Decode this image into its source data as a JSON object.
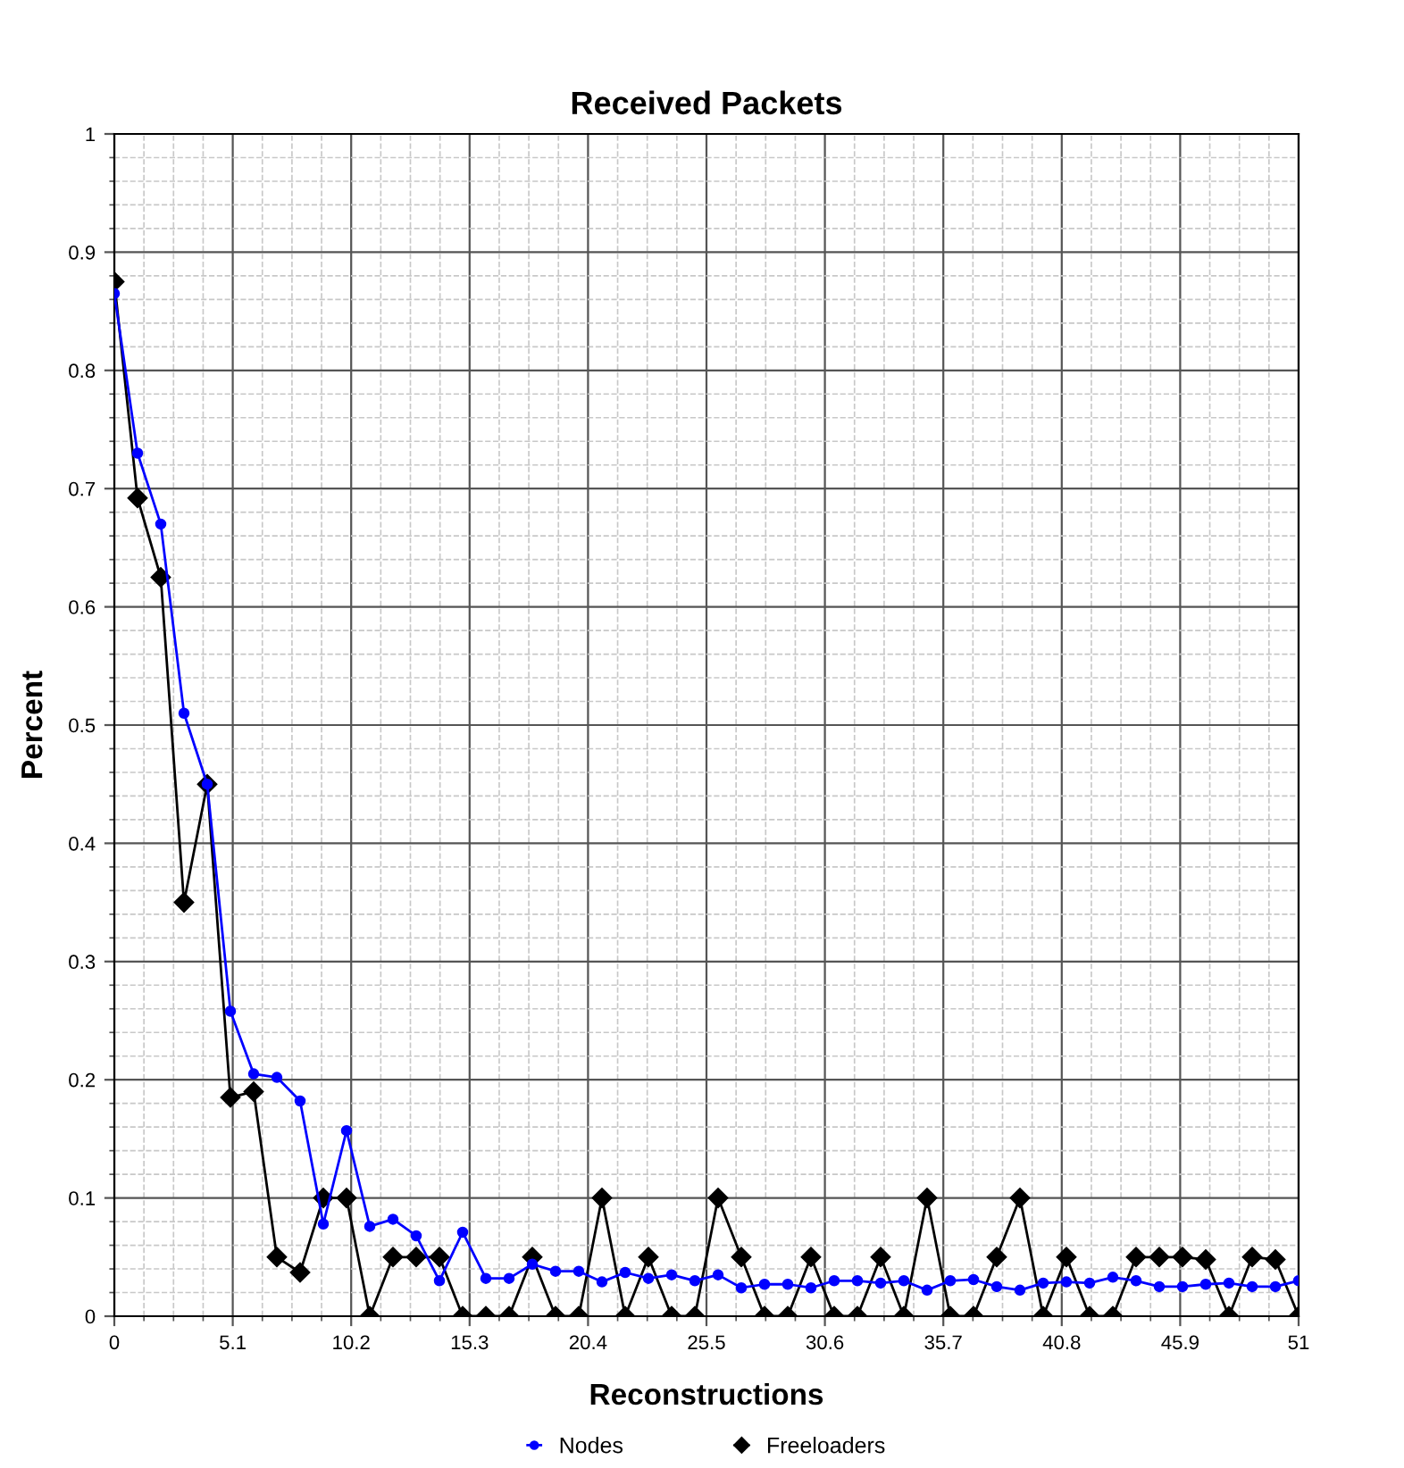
{
  "chart_data": {
    "type": "line",
    "title": "Received Packets",
    "xlabel": "Reconstructions",
    "ylabel": "Percent",
    "x": [
      0,
      1,
      2,
      3,
      4,
      5,
      6,
      7,
      8,
      9,
      10,
      11,
      12,
      13,
      14,
      15,
      16,
      17,
      18,
      19,
      20,
      21,
      22,
      23,
      24,
      25,
      26,
      27,
      28,
      29,
      30,
      31,
      32,
      33,
      34,
      35,
      36,
      37,
      38,
      39,
      40,
      41,
      42,
      43,
      44,
      45,
      46,
      47,
      48,
      49,
      50,
      51
    ],
    "series": [
      {
        "name": "Nodes",
        "color": "#0000ff",
        "marker": "circle",
        "values": [
          0.865,
          0.73,
          0.67,
          0.51,
          0.45,
          0.258,
          0.205,
          0.202,
          0.182,
          0.078,
          0.157,
          0.076,
          0.082,
          0.068,
          0.03,
          0.071,
          0.032,
          0.032,
          0.044,
          0.038,
          0.038,
          0.029,
          0.037,
          0.032,
          0.035,
          0.03,
          0.035,
          0.024,
          0.027,
          0.027,
          0.024,
          0.03,
          0.03,
          0.028,
          0.03,
          0.022,
          0.03,
          0.031,
          0.025,
          0.022,
          0.028,
          0.029,
          0.028,
          0.033,
          0.03,
          0.025,
          0.025,
          0.027,
          0.028,
          0.025,
          0.025,
          0.03
        ]
      },
      {
        "name": "Freeloaders",
        "color": "#000000",
        "marker": "diamond",
        "values": [
          0.875,
          0.692,
          0.625,
          0.35,
          0.45,
          0.185,
          0.19,
          0.05,
          0.037,
          0.1,
          0.1,
          0,
          0.05,
          0.05,
          0.05,
          0,
          0,
          0,
          0.05,
          0,
          0,
          0.1,
          0,
          0.05,
          0,
          0,
          0.1,
          0.05,
          0,
          0,
          0.05,
          0,
          0,
          0.05,
          0,
          0.1,
          0,
          0,
          0.05,
          0.1,
          0,
          0.05,
          0,
          0,
          0.05,
          0.05,
          0.05,
          0.048,
          0,
          0.05,
          0.048,
          0
        ]
      }
    ],
    "xlim": [
      0,
      51
    ],
    "xticks": [
      0,
      5.1,
      10.2,
      15.3,
      20.4,
      25.5,
      30.6,
      35.7,
      40.8,
      45.9,
      51
    ],
    "ylim": [
      0,
      1
    ],
    "yticks": [
      0,
      0.1,
      0.2,
      0.3,
      0.4,
      0.5,
      0.6,
      0.7,
      0.8,
      0.9,
      1
    ],
    "grid": true,
    "legend": "bottom",
    "line_style": "solid"
  }
}
